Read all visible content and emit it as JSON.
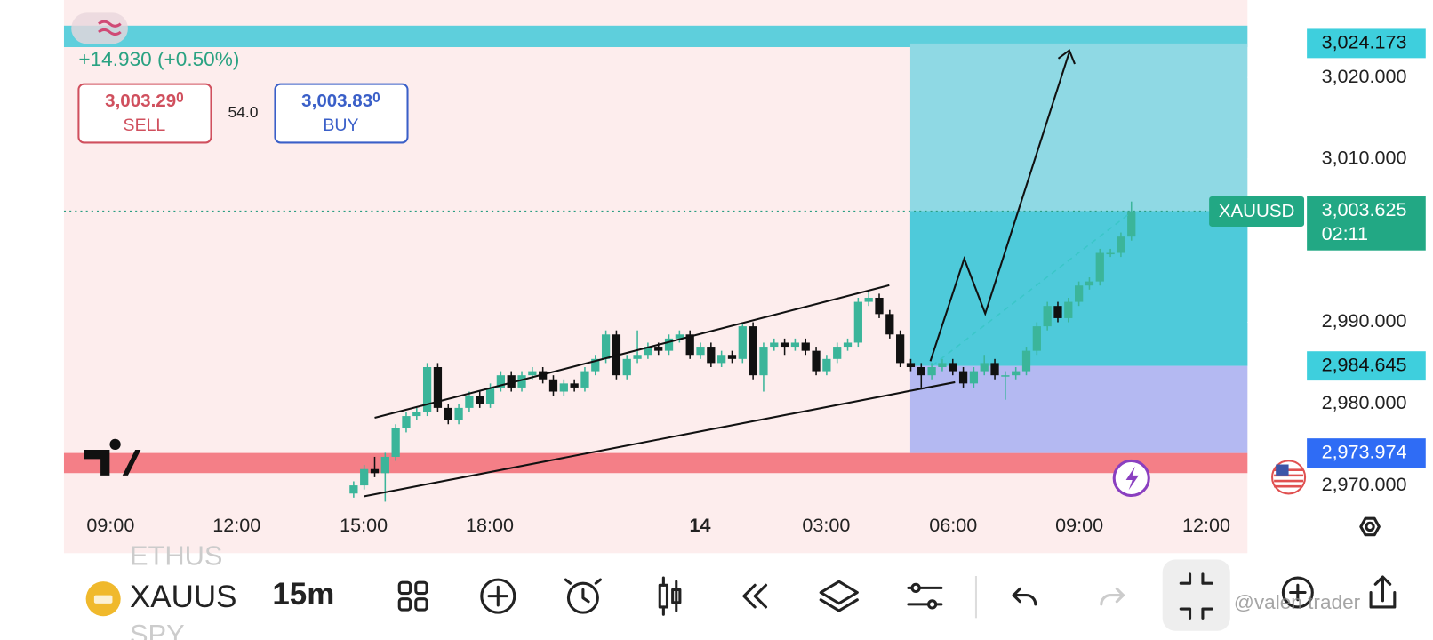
{
  "header": {
    "change": "+14.930 (+0.50%)",
    "sell": {
      "price": "3,003.29",
      "pip": "0",
      "label": "SELL"
    },
    "spread": "54.0",
    "buy": {
      "price": "3,003.83",
      "pip": "0",
      "label": "BUY"
    }
  },
  "chart_data": {
    "type": "candlestick",
    "symbol": "XAUUSD",
    "up_color": "#3bb59a",
    "down_color": "#111111",
    "open": [
      2969.0,
      2970.0,
      2972.0,
      2971.5,
      2973.5,
      2977.0,
      2978.5,
      2979.0,
      2984.5,
      2979.5,
      2978.0,
      2979.5,
      2981.0,
      2980.0,
      2982.0,
      2983.5,
      2982.0,
      2983.5,
      2984.0,
      2983.0,
      2981.5,
      2982.5,
      2982.0,
      2984.0,
      2985.5,
      2988.5,
      2983.5,
      2985.5,
      2986.0,
      2987.0,
      2986.5,
      2988.0,
      2988.5,
      2986.0,
      2987.0,
      2985.0,
      2986.0,
      2985.5,
      2989.5,
      2983.5,
      2987.0,
      2987.5,
      2987.0,
      2987.5,
      2986.5,
      2984.0,
      2985.5,
      2987.0,
      2987.5,
      2992.5,
      2993.0,
      2991.0,
      2988.5,
      2985.0,
      2984.5,
      2983.5,
      2984.5,
      2985.0,
      2984.0,
      2982.5,
      2984.0,
      2985.0,
      2983.5,
      2983.5,
      2984.0,
      2986.5,
      2989.5,
      2992.0,
      2990.5,
      2992.5,
      2994.5,
      2995.0,
      2998.5,
      2998.5,
      3000.5
    ],
    "high": [
      2970.5,
      2972.5,
      2973.5,
      2974.0,
      2977.5,
      2979.0,
      2979.5,
      2985.0,
      2985.0,
      2980.0,
      2980.0,
      2981.5,
      2981.5,
      2982.5,
      2984.0,
      2984.0,
      2984.0,
      2984.5,
      2984.5,
      2983.5,
      2983.0,
      2983.0,
      2984.5,
      2986.0,
      2989.0,
      2989.0,
      2986.0,
      2989.0,
      2987.5,
      2987.5,
      2988.5,
      2989.0,
      2989.0,
      2987.5,
      2987.5,
      2986.5,
      2986.5,
      2990.0,
      2990.0,
      2987.5,
      2988.0,
      2988.0,
      2988.0,
      2988.0,
      2987.0,
      2986.0,
      2987.5,
      2988.0,
      2993.0,
      2994.0,
      2993.5,
      2991.5,
      2989.0,
      2985.5,
      2985.0,
      2985.0,
      2985.5,
      2985.5,
      2984.5,
      2984.5,
      2986.0,
      2985.5,
      2984.0,
      2984.5,
      2987.0,
      2990.0,
      2992.5,
      2992.5,
      2993.0,
      2995.0,
      2995.5,
      2999.0,
      2999.0,
      3001.0,
      3004.8
    ],
    "low": [
      2968.5,
      2969.5,
      2971.0,
      2968.0,
      2973.0,
      2976.5,
      2978.0,
      2978.5,
      2979.0,
      2977.5,
      2977.5,
      2979.0,
      2979.5,
      2979.5,
      2981.5,
      2981.5,
      2981.5,
      2983.0,
      2982.5,
      2981.0,
      2981.0,
      2981.5,
      2981.5,
      2983.5,
      2985.0,
      2983.0,
      2983.0,
      2985.0,
      2985.5,
      2986.0,
      2986.0,
      2987.5,
      2985.5,
      2985.5,
      2984.5,
      2984.5,
      2985.0,
      2985.0,
      2983.0,
      2981.5,
      2986.5,
      2986.0,
      2986.5,
      2986.0,
      2983.5,
      2983.5,
      2985.0,
      2986.5,
      2987.0,
      2992.0,
      2990.5,
      2988.0,
      2984.5,
      2984.0,
      2982.0,
      2983.0,
      2984.0,
      2983.5,
      2982.0,
      2982.0,
      2983.5,
      2983.0,
      2980.5,
      2983.0,
      2983.5,
      2986.0,
      2989.0,
      2990.0,
      2990.0,
      2992.0,
      2994.0,
      2994.5,
      2998.0,
      2998.0,
      3000.0
    ],
    "close": [
      2970.0,
      2972.0,
      2971.5,
      2973.5,
      2977.0,
      2978.5,
      2979.0,
      2984.5,
      2979.5,
      2978.0,
      2979.5,
      2981.0,
      2980.0,
      2982.0,
      2983.5,
      2982.0,
      2983.5,
      2984.0,
      2983.0,
      2981.5,
      2982.5,
      2982.0,
      2984.0,
      2985.5,
      2988.5,
      2983.5,
      2985.5,
      2986.0,
      2987.0,
      2986.5,
      2988.0,
      2988.5,
      2986.0,
      2987.0,
      2985.0,
      2986.0,
      2985.5,
      2989.5,
      2983.5,
      2987.0,
      2987.5,
      2987.0,
      2987.5,
      2986.5,
      2984.0,
      2985.5,
      2987.0,
      2987.5,
      2992.5,
      2993.0,
      2991.0,
      2988.5,
      2985.0,
      2984.5,
      2983.5,
      2984.5,
      2985.0,
      2984.0,
      2982.5,
      2984.0,
      2985.0,
      2983.5,
      2983.5,
      2984.0,
      2986.5,
      2989.5,
      2992.0,
      2990.5,
      2992.5,
      2994.5,
      2995.0,
      2998.5,
      2998.5,
      3000.5,
      3003.6
    ],
    "x_labels": [
      "09:00",
      "12:00",
      "15:00",
      "18:00",
      "14",
      "03:00",
      "06:00",
      "09:00",
      "12:00"
    ],
    "ylim": [
      2967.3,
      3029.5
    ],
    "yticks": [
      {
        "value": 2970,
        "label": "2,970.000"
      },
      {
        "value": 2980,
        "label": "2,980.000"
      },
      {
        "value": 2990,
        "label": "2,990.000"
      },
      {
        "value": 3010,
        "label": "3,010.000"
      },
      {
        "value": 3020,
        "label": "3,020.000"
      }
    ],
    "last_price": {
      "value": 3003.625,
      "label": "3,003.625"
    },
    "countdown": "02:11",
    "position": {
      "target": {
        "value": 3024.173,
        "label": "3,024.173"
      },
      "entry": {
        "value": 2984.645,
        "label": "2,984.645"
      },
      "stop": {
        "value": 2973.974,
        "label": "2,973.974"
      }
    }
  },
  "toolbar": {
    "prev_symbol": "ETHUS",
    "symbol": "XAUUS",
    "next_symbol": "SPY",
    "interval": "15m"
  },
  "watermark": "@valen trader"
}
